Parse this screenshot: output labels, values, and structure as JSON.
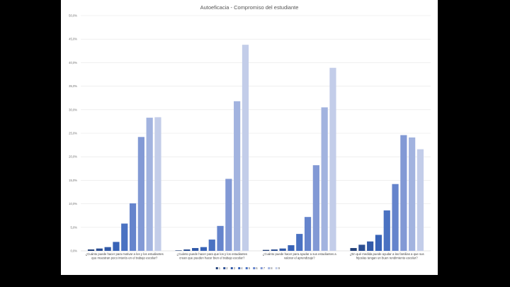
{
  "chart_data": {
    "type": "bar",
    "title": "Autoeficacia - Compromiso del estudiante",
    "xlabel": "",
    "ylabel": "",
    "ylim": [
      0,
      50
    ],
    "yticks": [
      "0,0%",
      "5,0%",
      "10,0%",
      "15,0%",
      "20,0%",
      "25,0%",
      "30,0%",
      "35,0%",
      "40,0%",
      "45,0%",
      "50,0%"
    ],
    "ytick_values": [
      0,
      5,
      10,
      15,
      20,
      25,
      30,
      35,
      40,
      45,
      50
    ],
    "grid": true,
    "legend_position": "bottom",
    "categories": [
      [
        "¿Cuánto puede hacer para motivar a los y los estudiantes",
        "que muestran poco interés en el trabajo escolar?"
      ],
      [
        "¿Cuánto puede hacer para que los y los estudiantes",
        "crean que pueden hacer bien el trabajo escolar?"
      ],
      [
        "¿Cuánto puede hacer para ayudar a sus estudiantes a",
        "valorar el aprendizaje?"
      ],
      [
        "¿En qué medida puede ayudar a las familias a que sus",
        "hijos/as tengan un buen rendimiento escolar?"
      ]
    ],
    "series": [
      {
        "name": "1",
        "color": "#24427a",
        "values": [
          0.3,
          0.1,
          0.2,
          0.6
        ]
      },
      {
        "name": "2",
        "color": "#2c4f93",
        "values": [
          0.5,
          0.3,
          0.3,
          1.3
        ]
      },
      {
        "name": "3",
        "color": "#325aa8",
        "values": [
          0.8,
          0.6,
          0.5,
          2.0
        ]
      },
      {
        "name": "4",
        "color": "#3863b7",
        "values": [
          1.9,
          0.8,
          1.2,
          3.4
        ]
      },
      {
        "name": "5",
        "color": "#4a72c2",
        "values": [
          5.8,
          2.4,
          3.6,
          8.6
        ]
      },
      {
        "name": "6",
        "color": "#6584cc",
        "values": [
          10.1,
          5.3,
          7.2,
          14.2
        ]
      },
      {
        "name": "7",
        "color": "#8299d5",
        "values": [
          24.2,
          15.3,
          18.2,
          24.6
        ]
      },
      {
        "name": "8",
        "color": "#a2b3df",
        "values": [
          28.3,
          31.8,
          30.5,
          24.1
        ]
      },
      {
        "name": "9",
        "color": "#c3cde9",
        "values": [
          28.4,
          43.8,
          38.9,
          21.6
        ]
      }
    ]
  }
}
